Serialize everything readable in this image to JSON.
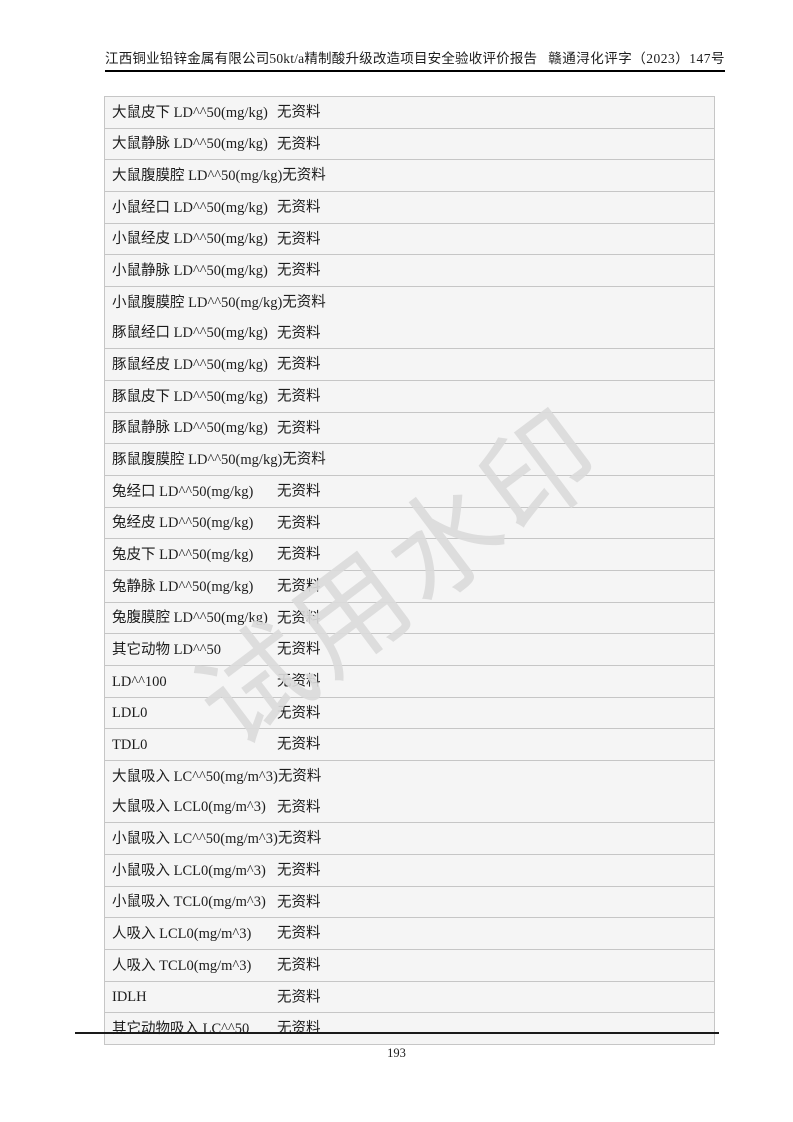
{
  "header": {
    "left": "江西铜业铅锌金属有限公司50kt/a精制酸升级改造项目安全验收评价报告",
    "right": "赣通浔化评字（2023）147号"
  },
  "watermark": {
    "text": "试用水印"
  },
  "footer": {
    "page_number": "193"
  },
  "table": {
    "no_data_text": "无资料",
    "rows": [
      {
        "lines": [
          {
            "label": "大鼠皮下 LD^^50(mg/kg)",
            "value": "无资料"
          }
        ]
      },
      {
        "lines": [
          {
            "label": "大鼠静脉 LD^^50(mg/kg)",
            "value": "无资料"
          }
        ]
      },
      {
        "lines": [
          {
            "label": "大鼠腹膜腔 LD^^50(mg/kg)",
            "value": "无资料"
          }
        ]
      },
      {
        "lines": [
          {
            "label": "小鼠经口 LD^^50(mg/kg)",
            "value": "无资料"
          }
        ]
      },
      {
        "lines": [
          {
            "label": "小鼠经皮 LD^^50(mg/kg)",
            "value": "无资料"
          }
        ]
      },
      {
        "lines": [
          {
            "label": "小鼠静脉 LD^^50(mg/kg)",
            "value": "无资料"
          }
        ]
      },
      {
        "lines": [
          {
            "label": "小鼠腹膜腔 LD^^50(mg/kg)",
            "value": "无资料"
          },
          {
            "label": "豚鼠经口 LD^^50(mg/kg)",
            "value": "无资料"
          }
        ]
      },
      {
        "lines": [
          {
            "label": "豚鼠经皮 LD^^50(mg/kg)",
            "value": "无资料"
          }
        ]
      },
      {
        "lines": [
          {
            "label": "豚鼠皮下 LD^^50(mg/kg)",
            "value": "无资料"
          }
        ]
      },
      {
        "lines": [
          {
            "label": "豚鼠静脉 LD^^50(mg/kg)",
            "value": "无资料"
          }
        ]
      },
      {
        "lines": [
          {
            "label": "豚鼠腹膜腔 LD^^50(mg/kg)",
            "value": "无资料"
          }
        ]
      },
      {
        "lines": [
          {
            "label": "兔经口 LD^^50(mg/kg)",
            "value": "无资料"
          }
        ]
      },
      {
        "lines": [
          {
            "label": "兔经皮 LD^^50(mg/kg)",
            "value": "无资料"
          }
        ]
      },
      {
        "lines": [
          {
            "label": "兔皮下 LD^^50(mg/kg)",
            "value": "无资料"
          }
        ]
      },
      {
        "lines": [
          {
            "label": "兔静脉 LD^^50(mg/kg)",
            "value": "无资料"
          }
        ]
      },
      {
        "lines": [
          {
            "label": "兔腹膜腔 LD^^50(mg/kg)",
            "value": "无资料"
          }
        ]
      },
      {
        "lines": [
          {
            "label": "其它动物 LD^^50",
            "value": "无资料"
          }
        ]
      },
      {
        "lines": [
          {
            "label": "LD^^100",
            "value": "无资料"
          }
        ]
      },
      {
        "lines": [
          {
            "label": "LDL0",
            "value": "无资料"
          }
        ]
      },
      {
        "lines": [
          {
            "label": "TDL0",
            "value": "无资料"
          }
        ]
      },
      {
        "lines": [
          {
            "label": "大鼠吸入 LC^^50(mg/m^3)",
            "value": "无资料"
          },
          {
            "label": "大鼠吸入 LCL0(mg/m^3)",
            "value": "无资料"
          }
        ]
      },
      {
        "lines": [
          {
            "label": "小鼠吸入 LC^^50(mg/m^3)",
            "value": "无资料"
          }
        ]
      },
      {
        "lines": [
          {
            "label": "小鼠吸入 LCL0(mg/m^3)",
            "value": "无资料"
          }
        ]
      },
      {
        "lines": [
          {
            "label": "小鼠吸入 TCL0(mg/m^3)",
            "value": "无资料"
          }
        ]
      },
      {
        "lines": [
          {
            "label": "人吸入 LCL0(mg/m^3)",
            "value": "无资料"
          }
        ]
      },
      {
        "lines": [
          {
            "label": "人吸入 TCL0(mg/m^3)",
            "value": "无资料"
          }
        ]
      },
      {
        "lines": [
          {
            "label": "IDLH",
            "value": "无资料"
          }
        ]
      },
      {
        "lines": [
          {
            "label": "其它动物吸入 LC^^50",
            "value": "无资料"
          }
        ]
      }
    ]
  }
}
